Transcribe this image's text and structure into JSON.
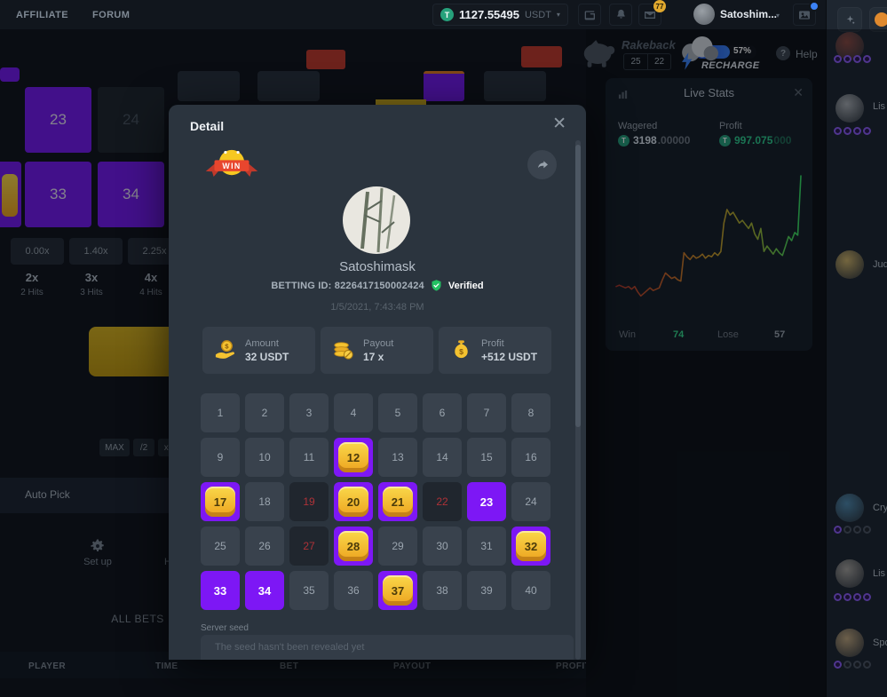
{
  "topbar": {
    "nav": [
      "AFFILIATE",
      "FORUM"
    ],
    "balance": "1127.55495",
    "currency": "USDT",
    "coin_symbol": "T",
    "mail_badge": "77",
    "username": "Satoshim..."
  },
  "rightbar": {
    "rakeback_label": "Rakeback",
    "rakeback_values": [
      "25",
      "22"
    ],
    "recharge_percent": "57%",
    "recharge_label": "RECHARGE",
    "help_label": "Help"
  },
  "live_stats": {
    "title": "Live Stats",
    "wagered_label": "Wagered",
    "wagered_main": "3198",
    "wagered_faded": ".00000",
    "profit_label": "Profit",
    "profit_main": "997.075",
    "profit_faded": "000",
    "win_label": "Win",
    "win_value": "74",
    "lose_label": "Lose",
    "lose_value": "57"
  },
  "chart_data": {
    "type": "line",
    "title": "Live Stats cumulative profit trend",
    "xlabel": "",
    "ylabel": "",
    "ylim": [
      0,
      100
    ],
    "grid": false,
    "legend": null,
    "values": [
      16,
      17,
      16,
      15,
      16,
      14,
      16,
      12,
      9,
      11,
      13,
      15,
      13,
      14,
      15,
      21,
      26,
      24,
      22,
      23,
      21,
      20,
      41,
      38,
      36,
      39,
      37,
      38,
      40,
      37,
      39,
      38,
      41,
      39,
      42,
      63,
      73,
      69,
      71,
      67,
      63,
      65,
      62,
      59,
      63,
      55,
      51,
      59,
      42,
      46,
      43,
      40,
      44,
      41,
      39,
      46,
      53,
      50,
      56,
      54,
      98
    ],
    "gradient": [
      "#b2372b",
      "#c75e27",
      "#cf9a28",
      "#9fb433",
      "#35e065"
    ]
  },
  "game": {
    "board_numbers": [
      "23",
      "24",
      "33",
      "34"
    ],
    "multipliers": [
      "0.00x",
      "1.40x",
      "2.25x"
    ],
    "hit_tabs": [
      {
        "mult": "2x",
        "hits": "2 Hits"
      },
      {
        "mult": "3x",
        "hits": "3 Hits"
      },
      {
        "mult": "4x",
        "hits": "4 Hits"
      }
    ],
    "controls": [
      "MAX",
      "/2",
      "x2"
    ],
    "auto_pick": "Auto Pick",
    "setup_label": "Set up",
    "hotkeys_partial": "H",
    "all_bets_tab": "ALL BETS",
    "table_headers": [
      "PLAYER",
      "TIME",
      "BET",
      "PAYOUT",
      "PROFIT"
    ]
  },
  "modal": {
    "title": "Detail",
    "result_badge": "WIN",
    "username": "Satoshimask",
    "betting_id": "BETTING ID: 8226417150002424",
    "verified_label": "Verified",
    "timestamp": "1/5/2021, 7:43:48 PM",
    "stats": [
      {
        "label": "Amount",
        "value": "32 USDT",
        "icon": "hand-coin-icon"
      },
      {
        "label": "Payout",
        "value": "17 x",
        "icon": "coin-stack-icon"
      },
      {
        "label": "Profit",
        "value": "+512 USDT",
        "icon": "money-bag-icon"
      }
    ],
    "grid": {
      "count": 40,
      "hit": [
        12,
        17,
        20,
        21,
        28,
        32,
        37
      ],
      "picked_miss": [
        23,
        33,
        34
      ],
      "drawn_miss": [
        19,
        22,
        27
      ]
    },
    "server_seed_label": "Server seed",
    "server_seed_value": "The seed hasn't been revealed yet"
  },
  "chat": {
    "names": [
      "Lis",
      "Jud",
      "Cry",
      "Lis",
      "Spo"
    ]
  },
  "colors": {
    "accent_purple": "#7d17f5",
    "coin_gold": "#f4c230",
    "tether_green": "#26a17b",
    "win_green": "#35d98c",
    "lose_red": "#ae3238",
    "recharge_blue": "#3b82f6",
    "verified_green": "#23c162"
  }
}
